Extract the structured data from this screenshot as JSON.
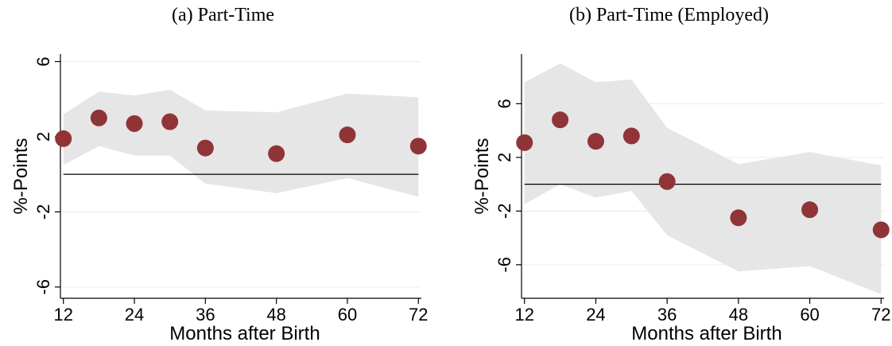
{
  "colors": {
    "marker": "#903438",
    "band": "#e6e6e6",
    "grid": "#ececec",
    "axis": "#000000"
  },
  "chart_data": [
    {
      "type": "scatter",
      "title": "(a) Part-Time",
      "xlabel": "Months after Birth",
      "ylabel": "%-Points",
      "x_ticks": [
        12,
        24,
        36,
        48,
        60,
        72
      ],
      "y_ticks": [
        -6,
        -2,
        2,
        6
      ],
      "xlim": [
        11.5,
        72.5
      ],
      "ylim": [
        -6.6,
        6.4
      ],
      "zero_line": 0,
      "points": {
        "x": [
          12,
          18,
          24,
          30,
          36,
          48,
          60,
          72
        ],
        "y": [
          1.9,
          3.0,
          2.7,
          2.8,
          1.4,
          1.1,
          2.1,
          1.5
        ]
      },
      "ci_band": {
        "x": [
          12,
          18,
          24,
          30,
          36,
          48,
          60,
          72
        ],
        "lower": [
          0.5,
          1.5,
          1.0,
          1.0,
          -0.5,
          -1.0,
          -0.2,
          -1.2
        ],
        "upper": [
          3.2,
          4.4,
          4.2,
          4.5,
          3.4,
          3.3,
          4.3,
          4.1
        ]
      }
    },
    {
      "type": "scatter",
      "title": "(b) Part-Time (Employed)",
      "xlabel": "Months after Birth",
      "ylabel": "%-Points",
      "x_ticks": [
        12,
        24,
        36,
        48,
        60,
        72
      ],
      "y_ticks": [
        -6,
        -2,
        2,
        6
      ],
      "xlim": [
        11.5,
        72.5
      ],
      "ylim": [
        -8.5,
        9.7
      ],
      "zero_line": 0,
      "points": {
        "x": [
          12,
          18,
          24,
          30,
          36,
          48,
          60,
          72
        ],
        "y": [
          3.1,
          4.8,
          3.2,
          3.6,
          0.2,
          -2.5,
          -1.9,
          -3.4
        ]
      },
      "ci_band": {
        "x": [
          12,
          18,
          24,
          30,
          36,
          48,
          60,
          72
        ],
        "lower": [
          -1.5,
          0.0,
          -1.0,
          -0.5,
          -3.8,
          -6.5,
          -6.1,
          -8.2
        ],
        "upper": [
          7.6,
          9.0,
          7.6,
          7.8,
          4.2,
          1.5,
          2.4,
          1.4
        ]
      }
    }
  ]
}
